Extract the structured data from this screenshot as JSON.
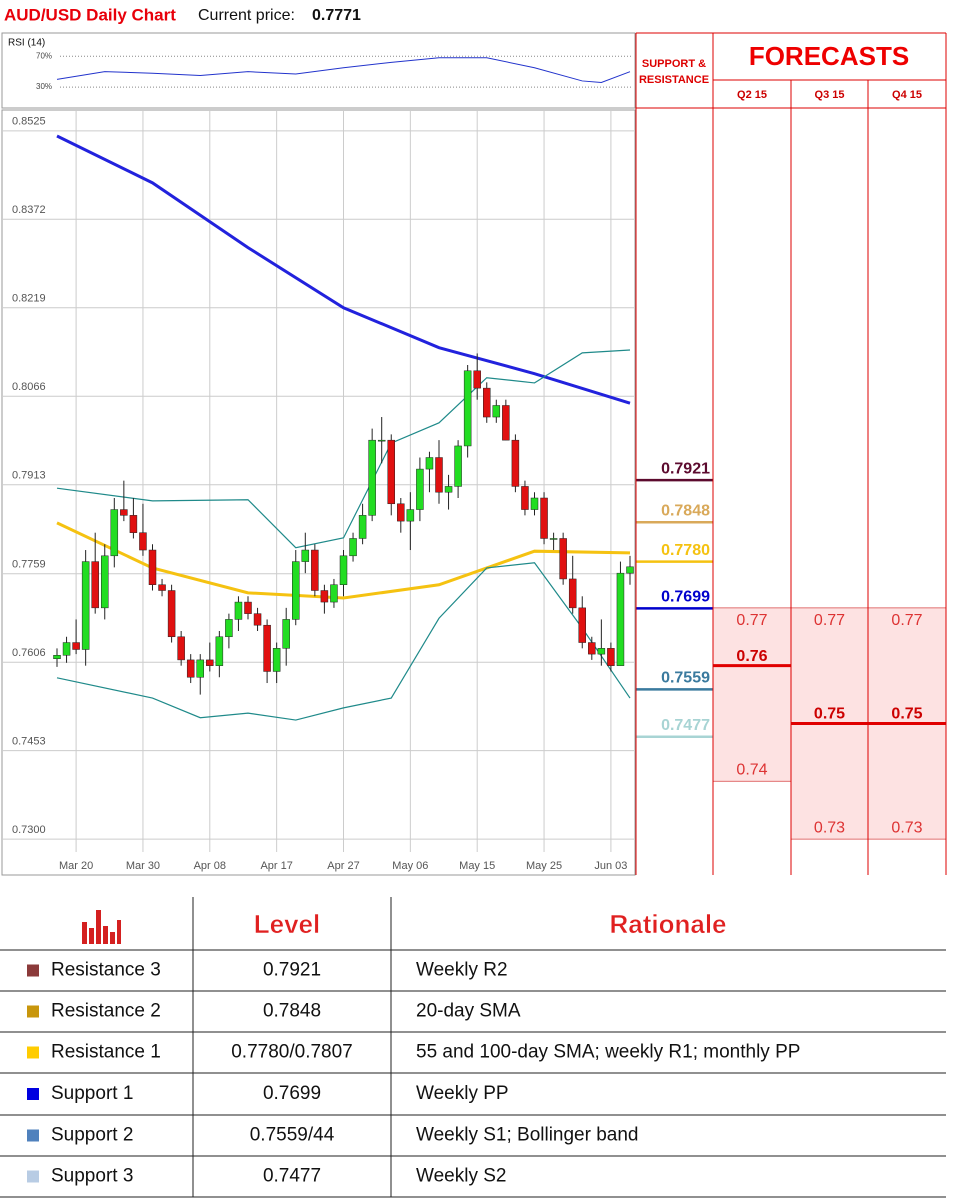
{
  "header": {
    "title": "AUD/USD Daily Chart",
    "price_label": "Current price:"
  },
  "chart_data": {
    "type": "candlestick",
    "current_price": 0.7771,
    "categories": [
      null,
      null,
      "Mar 20",
      null,
      null,
      null,
      null,
      null,
      null,
      "Mar 30",
      null,
      null,
      null,
      null,
      null,
      null,
      "Apr 08",
      null,
      null,
      null,
      null,
      null,
      null,
      "Apr 17",
      null,
      null,
      null,
      null,
      null,
      null,
      "Apr 27",
      null,
      null,
      null,
      null,
      null,
      null,
      "May 06",
      null,
      null,
      null,
      null,
      null,
      null,
      "May 15",
      null,
      null,
      null,
      null,
      null,
      null,
      "May 25",
      null,
      null,
      null,
      null,
      null,
      null,
      "Jun 03",
      null,
      null
    ],
    "ohlc": [
      [
        0.7612,
        0.763,
        0.7598,
        0.7618
      ],
      [
        0.7618,
        0.765,
        0.7605,
        0.764
      ],
      [
        0.764,
        0.768,
        0.762,
        0.7628
      ],
      [
        0.7628,
        0.78,
        0.76,
        0.778
      ],
      [
        0.778,
        0.783,
        0.769,
        0.77
      ],
      [
        0.77,
        0.781,
        0.768,
        0.779
      ],
      [
        0.779,
        0.789,
        0.777,
        0.787
      ],
      [
        0.787,
        0.792,
        0.785,
        0.786
      ],
      [
        0.786,
        0.789,
        0.782,
        0.783
      ],
      [
        0.783,
        0.788,
        0.779,
        0.78
      ],
      [
        0.78,
        0.781,
        0.773,
        0.774
      ],
      [
        0.774,
        0.775,
        0.772,
        0.773
      ],
      [
        0.773,
        0.774,
        0.764,
        0.765
      ],
      [
        0.765,
        0.766,
        0.76,
        0.761
      ],
      [
        0.761,
        0.762,
        0.757,
        0.758
      ],
      [
        0.758,
        0.762,
        0.755,
        0.761
      ],
      [
        0.761,
        0.764,
        0.759,
        0.76
      ],
      [
        0.76,
        0.766,
        0.758,
        0.765
      ],
      [
        0.765,
        0.769,
        0.763,
        0.768
      ],
      [
        0.768,
        0.772,
        0.766,
        0.771
      ],
      [
        0.771,
        0.772,
        0.768,
        0.769
      ],
      [
        0.769,
        0.77,
        0.766,
        0.767
      ],
      [
        0.767,
        0.768,
        0.757,
        0.759
      ],
      [
        0.759,
        0.764,
        0.757,
        0.763
      ],
      [
        0.763,
        0.77,
        0.76,
        0.768
      ],
      [
        0.768,
        0.78,
        0.767,
        0.778
      ],
      [
        0.778,
        0.783,
        0.776,
        0.78
      ],
      [
        0.78,
        0.781,
        0.772,
        0.773
      ],
      [
        0.773,
        0.774,
        0.769,
        0.771
      ],
      [
        0.771,
        0.775,
        0.77,
        0.774
      ],
      [
        0.774,
        0.78,
        0.772,
        0.779
      ],
      [
        0.779,
        0.783,
        0.778,
        0.782
      ],
      [
        0.782,
        0.788,
        0.781,
        0.786
      ],
      [
        0.786,
        0.801,
        0.785,
        0.799
      ],
      [
        0.799,
        0.803,
        0.795,
        0.799
      ],
      [
        0.799,
        0.8,
        0.786,
        0.788
      ],
      [
        0.788,
        0.789,
        0.783,
        0.785
      ],
      [
        0.785,
        0.79,
        0.78,
        0.787
      ],
      [
        0.787,
        0.796,
        0.785,
        0.794
      ],
      [
        0.794,
        0.797,
        0.79,
        0.796
      ],
      [
        0.796,
        0.799,
        0.788,
        0.79
      ],
      [
        0.79,
        0.793,
        0.787,
        0.791
      ],
      [
        0.791,
        0.799,
        0.789,
        0.798
      ],
      [
        0.798,
        0.812,
        0.796,
        0.811
      ],
      [
        0.811,
        0.814,
        0.806,
        0.808
      ],
      [
        0.808,
        0.809,
        0.802,
        0.803
      ],
      [
        0.803,
        0.806,
        0.802,
        0.805
      ],
      [
        0.805,
        0.806,
        0.799,
        0.799
      ],
      [
        0.799,
        0.8,
        0.79,
        0.791
      ],
      [
        0.791,
        0.792,
        0.786,
        0.787
      ],
      [
        0.787,
        0.79,
        0.786,
        0.789
      ],
      [
        0.789,
        0.79,
        0.781,
        0.782
      ],
      [
        0.782,
        0.783,
        0.78,
        0.782
      ],
      [
        0.782,
        0.783,
        0.774,
        0.775
      ],
      [
        0.775,
        0.779,
        0.769,
        0.77
      ],
      [
        0.77,
        0.772,
        0.763,
        0.764
      ],
      [
        0.764,
        0.765,
        0.761,
        0.762
      ],
      [
        0.762,
        0.768,
        0.76,
        0.763
      ],
      [
        0.763,
        0.764,
        0.759,
        0.76
      ],
      [
        0.76,
        0.778,
        0.76,
        0.776
      ],
      [
        0.776,
        0.779,
        0.774,
        0.7771
      ]
    ],
    "up_color": "#22dd22",
    "down_color": "#e01010",
    "lines": [
      {
        "color": "#2222dd",
        "x": [
          0,
          10,
          20,
          30,
          40,
          50,
          60
        ],
        "values": [
          0.8516,
          0.8435,
          0.8323,
          0.8219,
          0.815,
          0.8105,
          0.8054
        ]
      },
      {
        "color": "#f5c211",
        "x": [
          0,
          10,
          20,
          30,
          40,
          50,
          60
        ],
        "values": [
          0.7847,
          0.7769,
          0.7726,
          0.7717,
          0.774,
          0.7798,
          0.7795
        ]
      },
      {
        "color": "#1f8a8a",
        "x": [
          0,
          10,
          20,
          25,
          30,
          35,
          40,
          45,
          50,
          55,
          60
        ],
        "values": [
          0.7907,
          0.7885,
          0.7887,
          0.7804,
          0.7821,
          0.7985,
          0.802,
          0.8098,
          0.8089,
          0.8141,
          0.8146
        ]
      },
      {
        "color": "#1f8a8a",
        "x": [
          0,
          10,
          15,
          20,
          25,
          30,
          35,
          40,
          45,
          50,
          55,
          60
        ],
        "values": [
          0.7579,
          0.7544,
          0.751,
          0.7518,
          0.7506,
          0.7527,
          0.7544,
          0.7682,
          0.7769,
          0.7778,
          0.7665,
          0.7544
        ]
      }
    ],
    "ylim": [
      0.7238,
      0.8561
    ],
    "yticks": [
      0.8525,
      0.8372,
      0.8219,
      0.8066,
      0.7913,
      0.7759,
      0.7606,
      0.7453,
      {
        "value": 0.73,
        "label": "0.7300"
      }
    ],
    "grid": true,
    "rsi": {
      "title": "RSI (14)",
      "color": "#2233cc",
      "ylim": [
        3,
        100
      ],
      "yticks": [
        {
          "value": 70,
          "label": "70%"
        },
        {
          "value": 30,
          "label": "30%"
        }
      ],
      "x": [
        0,
        5,
        10,
        15,
        20,
        25,
        30,
        35,
        40,
        45,
        50,
        55,
        57,
        60
      ],
      "values": [
        40,
        50,
        48,
        45,
        50,
        47,
        55,
        62,
        68,
        68,
        55,
        38,
        36,
        50
      ]
    },
    "support_resistance": {
      "title": [
        "SUPPORT &",
        "RESISTANCE"
      ],
      "levels": [
        {
          "value": 0.7921,
          "label": "0.7921",
          "color": "#5c0a2e"
        },
        {
          "value": 0.7848,
          "label": "0.7848",
          "color": "#d9a95a"
        },
        {
          "value": 0.778,
          "label": "0.7780",
          "color": "#f5c211"
        },
        {
          "value": 0.7699,
          "label": "0.7699",
          "color": "#0000cc"
        },
        {
          "value": 0.7559,
          "label": "0.7559",
          "color": "#3a7a9e"
        },
        {
          "value": 0.7477,
          "label": "0.7477",
          "color": "#a8d4d4"
        }
      ]
    },
    "forecasts": {
      "title": "FORECASTS",
      "columns": [
        {
          "label": "Q2 15",
          "high": 0.77,
          "mid": 0.76,
          "low": 0.74
        },
        {
          "label": "Q3 15",
          "high": 0.77,
          "mid": 0.75,
          "low": 0.73
        },
        {
          "label": "Q4 15",
          "high": 0.77,
          "mid": 0.75,
          "low": 0.73
        }
      ]
    }
  },
  "table": {
    "header": [
      "Level",
      "Rationale"
    ],
    "rows": [
      {
        "name": "Resistance 3",
        "color": "#8b3a3a",
        "level": "0.7921",
        "rationale": "Weekly R2"
      },
      {
        "name": "Resistance 2",
        "color": "#c8960c",
        "level": "0.7848",
        "rationale": "20-day SMA"
      },
      {
        "name": "Resistance 1",
        "color": "#ffcc00",
        "level": "0.7780/0.7807",
        "rationale": "55 and 100-day SMA; weekly R1; monthly PP"
      },
      {
        "name": "Support 1",
        "color": "#0000e0",
        "level": "0.7699",
        "rationale": "Weekly PP"
      },
      {
        "name": "Support 2",
        "color": "#4f81bd",
        "level": "0.7559/44",
        "rationale": "Weekly S1; Bollinger band"
      },
      {
        "name": "Support 3",
        "color": "#b8cce4",
        "level": "0.7477",
        "rationale": "Weekly S2"
      }
    ]
  }
}
